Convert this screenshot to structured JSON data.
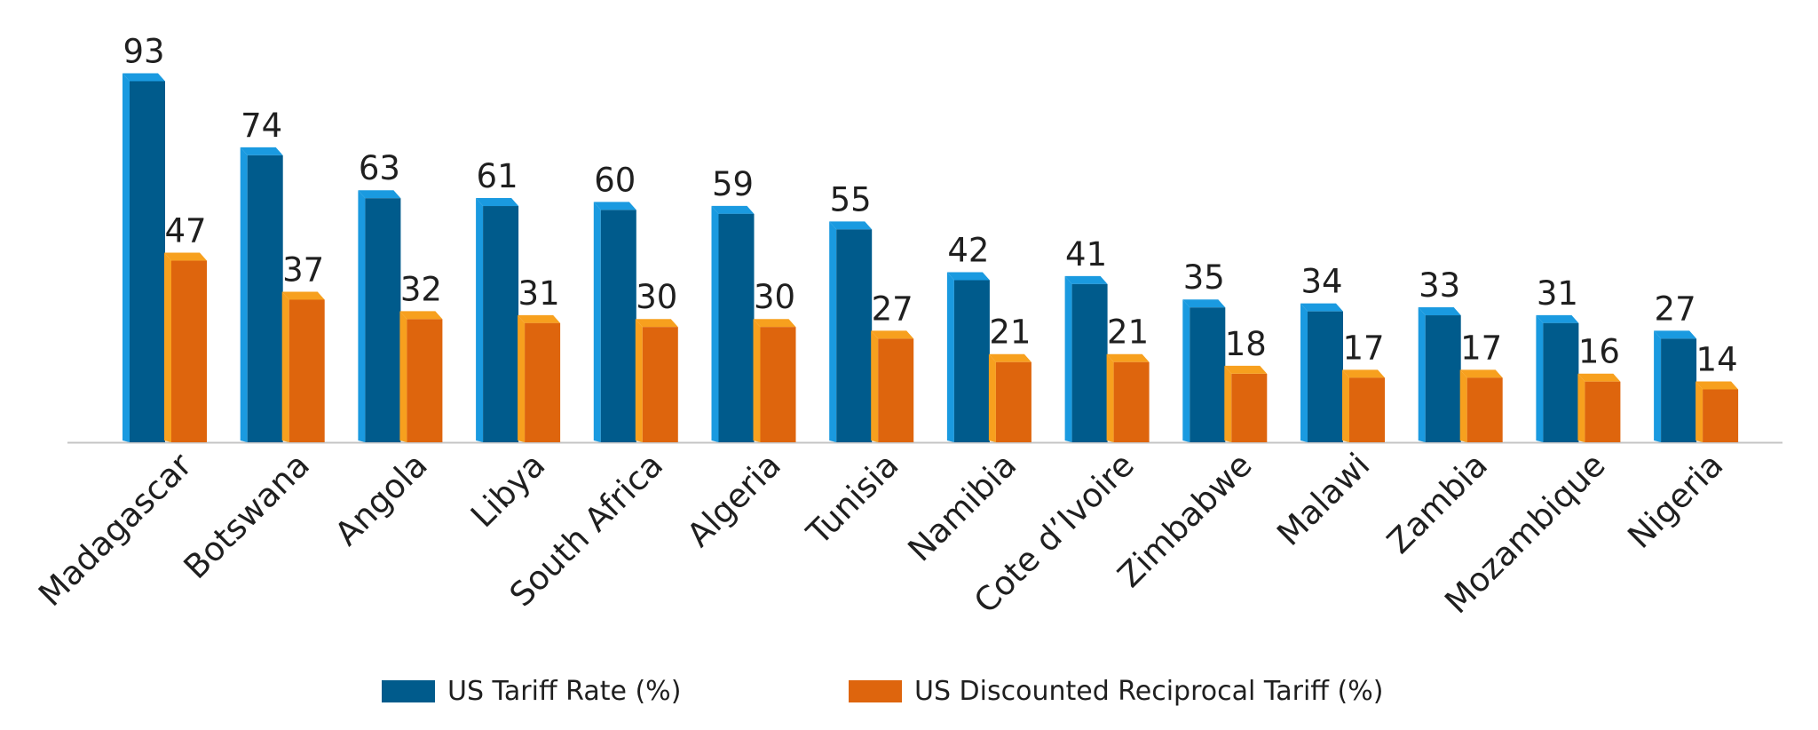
{
  "chart_data": {
    "type": "bar",
    "categories": [
      "Madagascar",
      "Botswana",
      "Angola",
      "Libya",
      "South Africa",
      "Algeria",
      "Tunisia",
      "Namibia",
      "Cote d’Ivoire",
      "Zimbabwe",
      "Malawi",
      "Zambia",
      "Mozambique",
      "Nigeria"
    ],
    "series": [
      {
        "name": "US Tariff Rate (%)",
        "values": [
          93,
          74,
          63,
          61,
          60,
          59,
          55,
          42,
          41,
          35,
          34,
          33,
          31,
          27
        ],
        "color": "#005b8c",
        "highlight": "#1a9ae0"
      },
      {
        "name": "US Discounted Reciprocal Tariff (%)",
        "values": [
          47,
          37,
          32,
          31,
          30,
          30,
          27,
          21,
          21,
          18,
          17,
          17,
          16,
          14
        ],
        "color": "#de650d",
        "highlight": "#f7a01e"
      }
    ],
    "ylim": [
      0,
      100
    ],
    "grid": false,
    "legend_position": "bottom-center",
    "title": "",
    "xlabel": "",
    "ylabel": ""
  }
}
